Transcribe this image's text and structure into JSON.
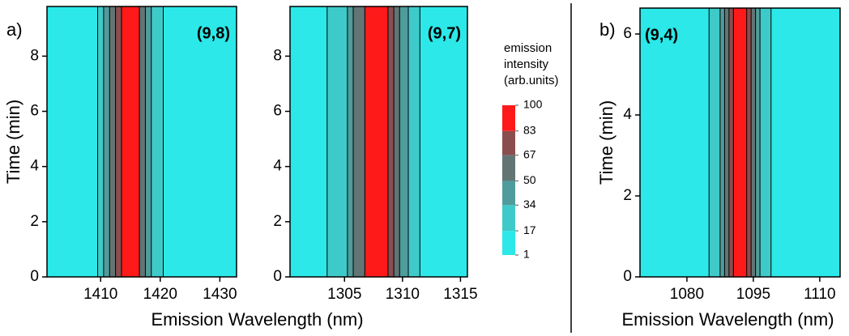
{
  "chart_data": [
    {
      "type": "contour",
      "panel_label": "a)",
      "annotation": "(9,8)",
      "xlabel": "Emission Wavelength (nm)",
      "ylabel": "Time (min)",
      "x": [
        1401,
        1403,
        1405,
        1407,
        1409,
        1410,
        1411,
        1412,
        1413,
        1414,
        1415,
        1416,
        1417,
        1418,
        1419,
        1420,
        1421,
        1422,
        1423,
        1425,
        1428,
        1431,
        1432.8
      ],
      "values": [
        3,
        5,
        8,
        10,
        15,
        20,
        35,
        55,
        80,
        95,
        100,
        85,
        60,
        45,
        30,
        20,
        15,
        10,
        5,
        3,
        2,
        1,
        1
      ],
      "xlim": [
        1401,
        1432.8
      ],
      "xticks": [
        1410,
        1420,
        1430
      ],
      "ylim": [
        0,
        9.8
      ],
      "yticks": [
        0,
        2,
        4,
        6,
        8
      ]
    },
    {
      "type": "contour",
      "annotation": "(9,7)",
      "x": [
        1300.3,
        1301,
        1302,
        1303,
        1304,
        1305,
        1305.5,
        1306,
        1306.5,
        1307,
        1307.5,
        1308,
        1308.5,
        1309,
        1309.5,
        1310,
        1311,
        1312,
        1313,
        1314,
        1315,
        1315.6
      ],
      "values": [
        5,
        8,
        10,
        12,
        18,
        28,
        38,
        50,
        65,
        85,
        95,
        100,
        95,
        80,
        55,
        35,
        20,
        12,
        8,
        5,
        3,
        2
      ],
      "xlim": [
        1300.3,
        1315.6
      ],
      "xticks": [
        1305,
        1310,
        1315
      ],
      "ylim": [
        0,
        9.8
      ],
      "yticks": [
        0,
        2,
        4,
        6,
        8
      ],
      "colorbar": {
        "title": "emission intensity (arb.units)",
        "ticks": [
          1,
          17,
          34,
          50,
          67,
          83,
          100
        ],
        "colors": [
          "#2ce8e8",
          "#3fcaca",
          "#4f9c9c",
          "#627474",
          "#8a4e4e",
          "#ff1a1a"
        ]
      }
    },
    {
      "type": "contour",
      "panel_label": "b)",
      "annotation": "(9,4)",
      "xlabel": "Emission Wavelength (nm)",
      "ylabel": "Time (min)",
      "x": [
        1069.4,
        1072,
        1076,
        1080,
        1084,
        1086,
        1087,
        1088,
        1089,
        1090,
        1091,
        1092,
        1093,
        1094,
        1095,
        1096,
        1097,
        1098,
        1100,
        1104,
        1108,
        1112,
        1114.6
      ],
      "values": [
        5,
        8,
        10,
        12,
        15,
        20,
        28,
        38,
        50,
        70,
        95,
        100,
        98,
        75,
        55,
        40,
        30,
        22,
        15,
        10,
        8,
        6,
        5
      ],
      "xlim": [
        1069.4,
        1114.6
      ],
      "xticks": [
        1080,
        1095,
        1110
      ],
      "ylim": [
        0,
        6.64
      ],
      "yticks": [
        0,
        2,
        4,
        6
      ]
    }
  ]
}
